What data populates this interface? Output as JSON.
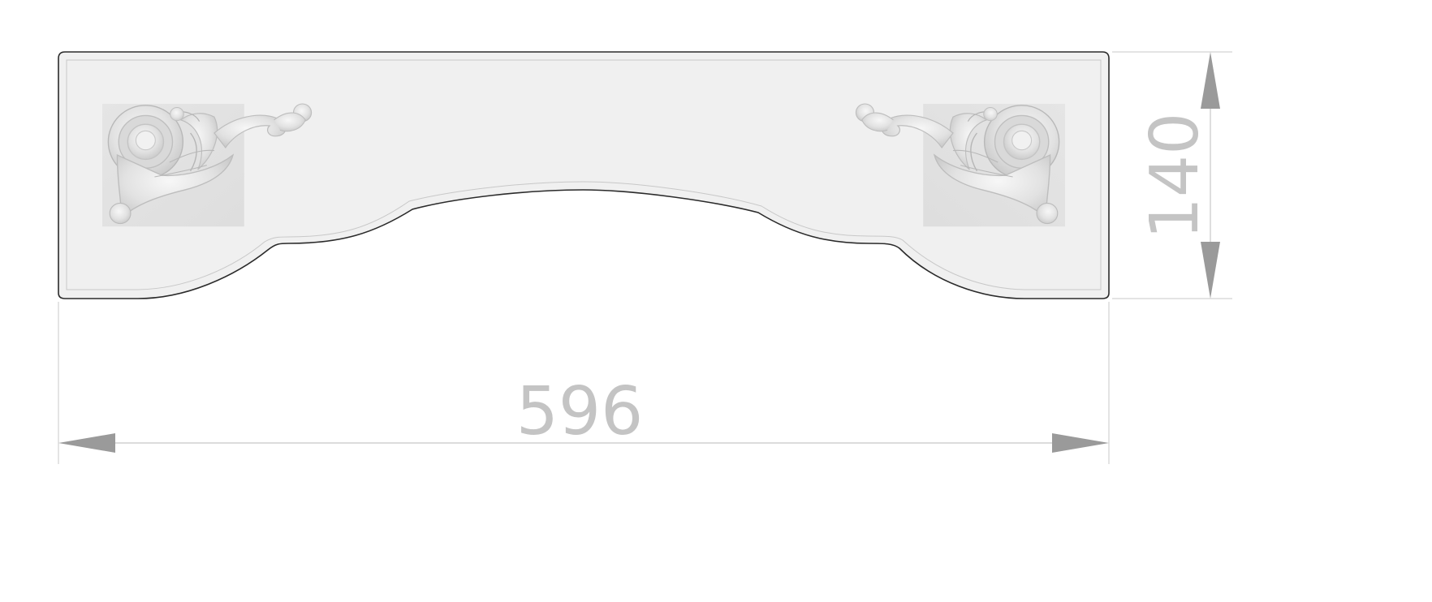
{
  "drawing": {
    "dimensions": {
      "width_value": "596",
      "height_value": "140"
    },
    "colors": {
      "panel_fill": "#f0f0f0",
      "panel_stroke": "#2a2a2a",
      "dimension_line": "#c8c8c8",
      "dimension_arrow": "#9a9a9a",
      "dimension_text": "#c4c4c4",
      "ornament_fill": "#e4e4e4",
      "ornament_shade": "#bdbdbd"
    },
    "ornaments": {
      "left": "acanthus-scroll-ornament",
      "right": "acanthus-scroll-ornament"
    }
  }
}
